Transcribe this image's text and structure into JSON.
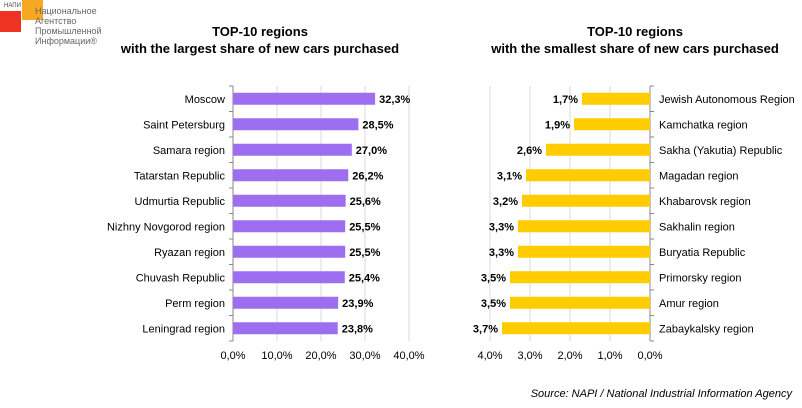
{
  "logo": {
    "small": "НАПИ",
    "text": "Национальное\nАгентство\nПромышленной\nИнформации®"
  },
  "colors": {
    "left": "#9d6ff0",
    "right": "#ffcc00",
    "grid": "#d9d9d9"
  },
  "source": "Source: NAPI / National Industrial Information Agency",
  "chart_data": [
    {
      "type": "bar",
      "orientation": "horizontal",
      "title_line1": "TOP-10 regions",
      "title_line2": "with the largest share of new cars purchased",
      "categories": [
        "Moscow",
        "Saint Petersburg",
        "Samara region",
        "Tatarstan Republic",
        "Udmurtia Republic",
        "Nizhny Novgorod region",
        "Ryazan region",
        "Chuvash Republic",
        "Perm region",
        "Leningrad region"
      ],
      "values": [
        32.3,
        28.5,
        27.0,
        26.2,
        25.6,
        25.5,
        25.5,
        25.4,
        23.9,
        23.8
      ],
      "labels": [
        "32,3%",
        "28,5%",
        "27,0%",
        "26,2%",
        "25,6%",
        "25,5%",
        "25,5%",
        "25,4%",
        "23,9%",
        "23,8%"
      ],
      "xlim": [
        0,
        40
      ],
      "ticks": [
        "0,0%",
        "10,0%",
        "20,0%",
        "30,0%",
        "40,0%"
      ],
      "grid": true
    },
    {
      "type": "bar",
      "orientation": "horizontal",
      "reversed": true,
      "title_line1": "TOP-10 regions",
      "title_line2": "with the smallest share of new cars purchased",
      "categories": [
        "Jewish Autonomous Region",
        "Kamchatka region",
        "Sakha (Yakutia) Republic",
        "Magadan region",
        "Khabarovsk region",
        "Sakhalin region",
        "Buryatia Republic",
        "Primorsky region",
        "Amur region",
        "Zabaykalsky region"
      ],
      "values": [
        1.7,
        1.9,
        2.6,
        3.1,
        3.2,
        3.3,
        3.3,
        3.5,
        3.5,
        3.7
      ],
      "labels": [
        "1,7%",
        "1,9%",
        "2,6%",
        "3,1%",
        "3,2%",
        "3,3%",
        "3,3%",
        "3,5%",
        "3,5%",
        "3,7%"
      ],
      "xlim": [
        0,
        4
      ],
      "ticks": [
        "4,0%",
        "3,0%",
        "2,0%",
        "1,0%",
        "0,0%"
      ],
      "grid": true
    }
  ]
}
